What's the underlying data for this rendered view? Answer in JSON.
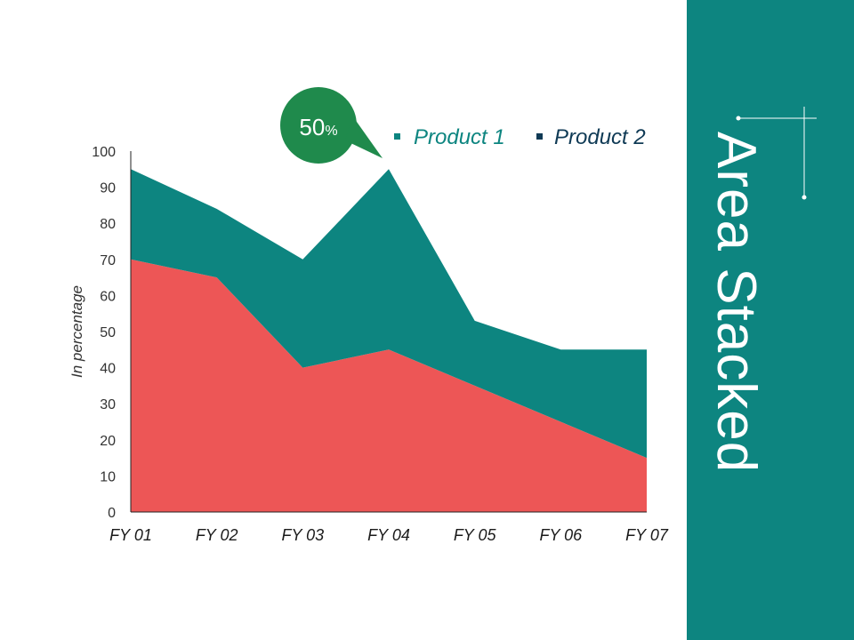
{
  "chart_data": {
    "type": "area",
    "stacked": true,
    "categories": [
      "FY 01",
      "FY 02",
      "FY 03",
      "FY 04",
      "FY 05",
      "FY 06",
      "FY 07"
    ],
    "series": [
      {
        "name": "Product 1",
        "values": [
          70,
          65,
          40,
          45,
          35,
          25,
          15
        ],
        "color": "#ed5656"
      },
      {
        "name": "Product 2",
        "values": [
          25,
          19,
          30,
          50,
          18,
          20,
          30
        ],
        "color": "#0d8580"
      }
    ],
    "title": "",
    "xlabel": "",
    "ylabel": "In percentage",
    "ylim": [
      0,
      100
    ],
    "yticks": [
      "0",
      "10",
      "20",
      "30",
      "40",
      "50",
      "60",
      "70",
      "80",
      "90",
      "100"
    ],
    "grid": false,
    "legend": "top"
  },
  "callout": {
    "value": "50",
    "unit": "%",
    "color": "#1f8a4c"
  },
  "side_panel": {
    "title": "Area Stacked",
    "color": "#0d8580"
  },
  "legend_colors": {
    "product1_text": "#0d8580",
    "product2_text": "#0f3a55"
  }
}
